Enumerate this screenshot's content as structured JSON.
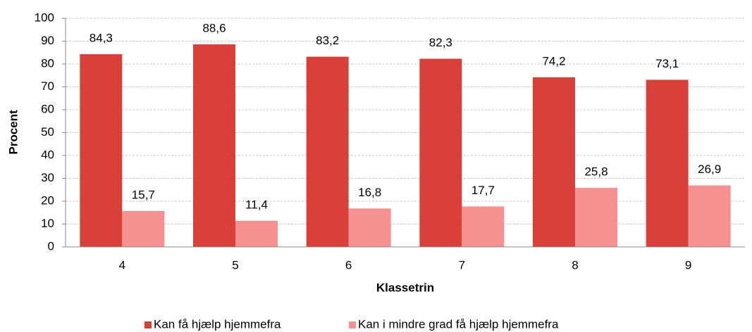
{
  "chart_data": {
    "type": "bar",
    "x_label": "Klassetrin",
    "y_label": "Procent",
    "categories": [
      "4",
      "5",
      "6",
      "7",
      "8",
      "9"
    ],
    "series": [
      {
        "name": "Kan få hjælp hjemmefra",
        "color": "#d9403a",
        "values": [
          84.3,
          88.6,
          83.2,
          82.3,
          74.2,
          73.1
        ],
        "value_labels": [
          "84,3",
          "88,6",
          "83,2",
          "82,3",
          "74,2",
          "73,1"
        ]
      },
      {
        "name": "Kan i mindre grad få hjælp hjemmefra",
        "color": "#f59190",
        "values": [
          15.7,
          11.4,
          16.8,
          17.7,
          25.8,
          26.9
        ],
        "value_labels": [
          "15,7",
          "11,4",
          "16,8",
          "17,7",
          "25,8",
          "26,9"
        ]
      }
    ],
    "ylim": [
      0,
      100
    ],
    "yticks": [
      0,
      10,
      20,
      30,
      40,
      50,
      60,
      70,
      80,
      90,
      100
    ],
    "grid": true,
    "legend": "bottom"
  }
}
